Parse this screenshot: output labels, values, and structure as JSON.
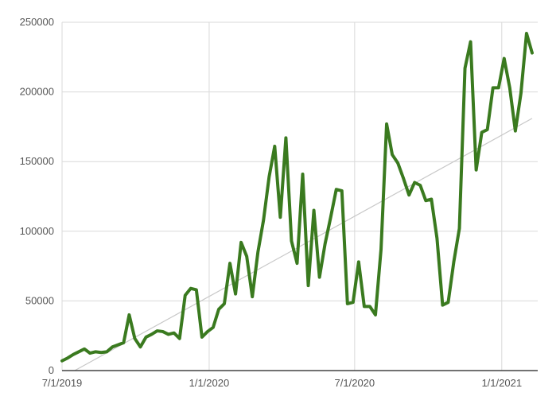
{
  "chart_data": {
    "type": "line",
    "title": "",
    "xlabel": "",
    "ylabel": "",
    "x_ticks": [
      {
        "date": "2019-07-01",
        "label": "7/1/2019"
      },
      {
        "date": "2020-01-01",
        "label": "1/1/2020"
      },
      {
        "date": "2020-07-01",
        "label": "7/1/2020"
      },
      {
        "date": "2021-01-01",
        "label": "1/1/2021"
      }
    ],
    "y_ticks": [
      0,
      50000,
      100000,
      150000,
      200000,
      250000
    ],
    "y_tick_labels": [
      "0",
      "50000",
      "100000",
      "150000",
      "200000",
      "250000"
    ],
    "xlim": [
      "2019-07-01",
      "2021-02-15"
    ],
    "ylim": [
      0,
      250000
    ],
    "grid": true,
    "legend": "none",
    "series": [
      {
        "color": "#3a7a1f",
        "points": [
          [
            "2019-07-01",
            7000
          ],
          [
            "2019-07-08",
            9000
          ],
          [
            "2019-07-15",
            11500
          ],
          [
            "2019-07-22",
            13500
          ],
          [
            "2019-07-29",
            15500
          ],
          [
            "2019-08-05",
            12500
          ],
          [
            "2019-08-12",
            13500
          ],
          [
            "2019-08-19",
            13000
          ],
          [
            "2019-08-26",
            13500
          ],
          [
            "2019-09-02",
            17000
          ],
          [
            "2019-09-09",
            18500
          ],
          [
            "2019-09-16",
            20000
          ],
          [
            "2019-09-23",
            40000
          ],
          [
            "2019-09-30",
            23000
          ],
          [
            "2019-10-07",
            17000
          ],
          [
            "2019-10-14",
            24000
          ],
          [
            "2019-10-21",
            26000
          ],
          [
            "2019-10-28",
            28500
          ],
          [
            "2019-11-04",
            28000
          ],
          [
            "2019-11-11",
            26000
          ],
          [
            "2019-11-18",
            27000
          ],
          [
            "2019-11-25",
            23000
          ],
          [
            "2019-12-02",
            54000
          ],
          [
            "2019-12-09",
            59000
          ],
          [
            "2019-12-16",
            58000
          ],
          [
            "2019-12-23",
            24000
          ],
          [
            "2019-12-30",
            28000
          ],
          [
            "2020-01-06",
            31000
          ],
          [
            "2020-01-13",
            44000
          ],
          [
            "2020-01-20",
            48000
          ],
          [
            "2020-01-27",
            77000
          ],
          [
            "2020-02-03",
            55000
          ],
          [
            "2020-02-10",
            92000
          ],
          [
            "2020-02-17",
            82000
          ],
          [
            "2020-02-24",
            53000
          ],
          [
            "2020-03-02",
            85000
          ],
          [
            "2020-03-09",
            108000
          ],
          [
            "2020-03-16",
            139000
          ],
          [
            "2020-03-23",
            161000
          ],
          [
            "2020-03-30",
            110000
          ],
          [
            "2020-04-06",
            167000
          ],
          [
            "2020-04-13",
            93000
          ],
          [
            "2020-04-20",
            77000
          ],
          [
            "2020-04-27",
            141000
          ],
          [
            "2020-05-04",
            61000
          ],
          [
            "2020-05-11",
            115000
          ],
          [
            "2020-05-18",
            67000
          ],
          [
            "2020-05-25",
            91000
          ],
          [
            "2020-06-01",
            110000
          ],
          [
            "2020-06-08",
            130000
          ],
          [
            "2020-06-15",
            129000
          ],
          [
            "2020-06-22",
            48000
          ],
          [
            "2020-06-29",
            49000
          ],
          [
            "2020-07-06",
            78000
          ],
          [
            "2020-07-13",
            46000
          ],
          [
            "2020-07-20",
            46000
          ],
          [
            "2020-07-27",
            40000
          ],
          [
            "2020-08-03",
            87000
          ],
          [
            "2020-08-10",
            177000
          ],
          [
            "2020-08-17",
            155000
          ],
          [
            "2020-08-24",
            149000
          ],
          [
            "2020-08-31",
            138000
          ],
          [
            "2020-09-07",
            126000
          ],
          [
            "2020-09-14",
            135000
          ],
          [
            "2020-09-21",
            133000
          ],
          [
            "2020-09-28",
            122000
          ],
          [
            "2020-10-05",
            123000
          ],
          [
            "2020-10-12",
            95000
          ],
          [
            "2020-10-19",
            47000
          ],
          [
            "2020-10-26",
            49000
          ],
          [
            "2020-11-02",
            78000
          ],
          [
            "2020-11-09",
            102000
          ],
          [
            "2020-11-16",
            217000
          ],
          [
            "2020-11-23",
            236000
          ],
          [
            "2020-11-30",
            144000
          ],
          [
            "2020-12-07",
            171000
          ],
          [
            "2020-12-14",
            173000
          ],
          [
            "2020-12-21",
            203000
          ],
          [
            "2020-12-28",
            203000
          ],
          [
            "2021-01-04",
            224000
          ],
          [
            "2021-01-11",
            203000
          ],
          [
            "2021-01-18",
            172000
          ],
          [
            "2021-01-25",
            199000
          ],
          [
            "2021-02-01",
            242000
          ],
          [
            "2021-02-08",
            228000
          ]
        ]
      }
    ],
    "trendline": {
      "color": "#c8c8c8",
      "start": [
        "2019-07-01",
        -5000
      ],
      "end": [
        "2021-02-08",
        181000
      ]
    }
  }
}
